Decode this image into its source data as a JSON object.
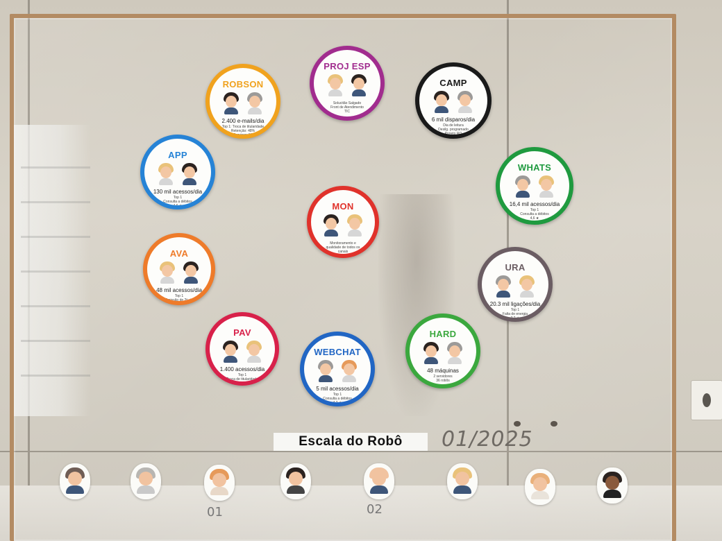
{
  "board": {
    "title": "Escala do Robô",
    "date": "01/2025",
    "marks": [
      "01",
      "02"
    ]
  },
  "badges": [
    {
      "id": "robson",
      "title": "ROBSON",
      "color": "#f0a21e",
      "main": "2.400 e-mails/dia",
      "sub": [
        "Top 1: Troca de titularidade",
        "Retenção: 48%",
        "Serviços: 56"
      ]
    },
    {
      "id": "proj-esp",
      "title": "PROJ ESP",
      "color": "#a12c8e",
      "main": "",
      "sub": [
        "Solucitão Salgado",
        "Front de Atendimento",
        "TIC"
      ]
    },
    {
      "id": "camp",
      "title": "CAMP",
      "color": "#1a1a1a",
      "main": "6 mil disparos/dia",
      "sub": [
        "Dia de leitura",
        "Desilg. programado",
        "Projeto RO"
      ]
    },
    {
      "id": "app",
      "title": "APP",
      "color": "#2683d6",
      "main": "130 mil acessos/dia",
      "sub": [
        "Top 1",
        "Consulta a débitos",
        "4,6 ★"
      ]
    },
    {
      "id": "whats",
      "title": "WHATS",
      "color": "#1f9a3f",
      "main": "16,4 mil acessos/dia",
      "sub": [
        "Top 1",
        "Consulta a débitos",
        "4,6 ★"
      ]
    },
    {
      "id": "mon",
      "title": "MON",
      "color": "#e0322b",
      "main": "",
      "sub": [
        "Monitoramento e",
        "qualidade de todos os",
        "canais"
      ]
    },
    {
      "id": "ava",
      "title": "AVA",
      "color": "#ee7b2a",
      "main": "48 mil acessos/dia",
      "sub": [
        "Top 1",
        "Emissão de 2ª via"
      ]
    },
    {
      "id": "ura",
      "title": "URA",
      "color": "#6b5d63",
      "main": "20.3 mil ligações/dia",
      "sub": [
        "Top 1",
        "Falta de energia",
        "3,2 ★"
      ]
    },
    {
      "id": "pav",
      "title": "PAV",
      "color": "#d8214a",
      "main": "1.400 acessos/dia",
      "sub": [
        "Top 1",
        "Troca de titularidade"
      ]
    },
    {
      "id": "hard",
      "title": "HARD",
      "color": "#3ba83e",
      "main": "48 máquinas",
      "sub": [
        "2 servidores",
        "36 robôs"
      ]
    },
    {
      "id": "webchat",
      "title": "WEBCHAT",
      "color": "#2166c4",
      "main": "5 mil acessos/dia",
      "sub": [
        "Top 1",
        "Consulta a débitos",
        "4,2 ★"
      ]
    }
  ],
  "avatar_palette": {
    "hair_dark": "#2b2320",
    "hair_gray": "#9c9a98",
    "hair_blonde": "#e9c27a",
    "hair_ginger": "#e69a5a",
    "shirt_dark": "#3e5679",
    "shirt_light": "#d6d6d6"
  }
}
